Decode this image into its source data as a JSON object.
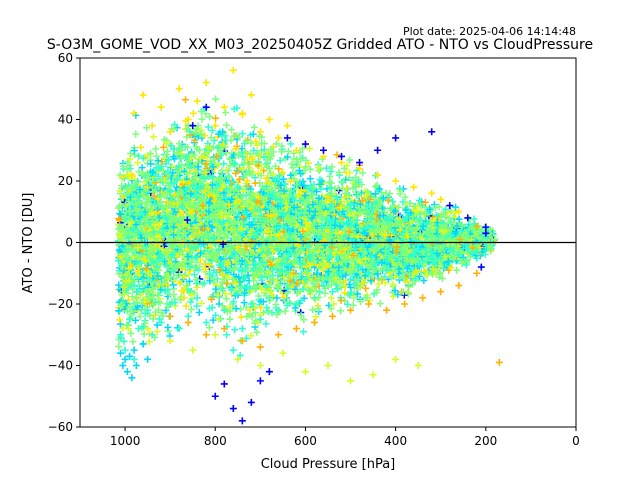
{
  "plot_date": "Plot date: 2025-04-06 14:14:48",
  "chart_data": {
    "type": "scatter",
    "title": "S-O3M_GOME_VOD_XX_M03_20250405Z Gridded ATO - NTO vs CloudPressure",
    "xlabel": "Cloud Pressure [hPa]",
    "ylabel": "ATO - NTO [DU]",
    "xlim": [
      1100,
      0
    ],
    "ylim": [
      -60,
      60
    ],
    "x_ticks": [
      1000,
      800,
      600,
      400,
      200,
      0
    ],
    "y_ticks": [
      -60,
      -40,
      -20,
      0,
      20,
      40,
      60
    ],
    "x_tick_labels": [
      "1000",
      "800",
      "600",
      "400",
      "200",
      "0"
    ],
    "y_tick_labels": [
      "−60",
      "−40",
      "−20",
      "0",
      "20",
      "40",
      "60"
    ],
    "reference_line_y": 0,
    "marker": "+",
    "grid": false,
    "colormap_colors": [
      "#0000ff",
      "#00d9ff",
      "#2dffd0",
      "#7dff7b",
      "#d4ff23",
      "#ffe600",
      "#ffb000"
    ],
    "series": [
      {
        "color": "#7dff7b",
        "x": [
          1010,
          1005,
          1000,
          995,
          990,
          985,
          980,
          975,
          970,
          960,
          950,
          940,
          930,
          920,
          910,
          900,
          880,
          860,
          840,
          820,
          800,
          780,
          760,
          740,
          720,
          700,
          680,
          660,
          640,
          620,
          600,
          580,
          560,
          540,
          520,
          500,
          480,
          460,
          440,
          420,
          400,
          380,
          360,
          340,
          320,
          300,
          280,
          260,
          240,
          220,
          200,
          190,
          180
        ],
        "y": [
          5,
          -8,
          12,
          -14,
          3,
          18,
          -20,
          9,
          -5,
          22,
          -16,
          7,
          -2,
          15,
          -11,
          4,
          -7,
          13,
          -18,
          2,
          10,
          -12,
          6,
          -3,
          16,
          -9,
          1,
          -14,
          8,
          -4,
          11,
          -6,
          3,
          -10,
          7,
          -2,
          5,
          -8,
          4,
          -1,
          6,
          -5,
          2,
          -3,
          4,
          -2,
          1,
          -3,
          2,
          -1,
          0,
          -2,
          1
        ]
      },
      {
        "color": "#2dffd0",
        "x": [
          1010,
          1000,
          990,
          980,
          970,
          960,
          950,
          940,
          920,
          900,
          880,
          860,
          840,
          820,
          800,
          780,
          760,
          740,
          720,
          700,
          680,
          660,
          640,
          620,
          600,
          580,
          560,
          540,
          520,
          500,
          480,
          460,
          440,
          420,
          400,
          380,
          360,
          340,
          320,
          300,
          280,
          260,
          240,
          220,
          200
        ],
        "y": [
          -30,
          -35,
          -25,
          -38,
          -28,
          -33,
          -22,
          -30,
          -26,
          -20,
          -28,
          -24,
          -18,
          -26,
          -30,
          -22,
          -35,
          -28,
          -20,
          -25,
          -18,
          -22,
          -15,
          -20,
          -12,
          -18,
          -14,
          -16,
          -10,
          -12,
          -8,
          -10,
          -6,
          -9,
          -5,
          -7,
          -4,
          -6,
          -3,
          -5,
          -2,
          -4,
          -2,
          -3,
          -1
        ]
      },
      {
        "color": "#00d9ff",
        "x": [
          1010,
          1005,
          1000,
          995,
          990,
          985,
          980,
          975,
          960,
          950
        ],
        "y": [
          -36,
          -40,
          -38,
          -42,
          -37,
          -44,
          -35,
          -40,
          -33,
          -38
        ]
      },
      {
        "color": "#ffe600",
        "x": [
          980,
          960,
          940,
          920,
          900,
          880,
          860,
          840,
          820,
          800,
          780,
          760,
          740,
          720,
          700,
          680,
          660,
          640,
          620,
          600,
          560,
          520,
          480,
          440,
          400,
          360,
          320,
          300,
          280,
          260
        ],
        "y": [
          42,
          48,
          38,
          44,
          36,
          50,
          40,
          46,
          52,
          38,
          44,
          56,
          42,
          48,
          36,
          40,
          34,
          38,
          30,
          32,
          28,
          26,
          24,
          22,
          20,
          18,
          16,
          14,
          12,
          10
        ]
      },
      {
        "color": "#ffb000",
        "x": [
          900,
          860,
          820,
          780,
          740,
          700,
          660,
          620,
          580,
          540,
          500,
          460,
          420,
          380,
          340,
          300,
          260,
          220,
          170
        ],
        "y": [
          -24,
          -26,
          -30,
          -28,
          -32,
          -34,
          -30,
          -28,
          -26,
          -24,
          -22,
          -20,
          -22,
          -20,
          -18,
          -16,
          -14,
          -10,
          -39
        ]
      },
      {
        "color": "#d4ff23",
        "x": [
          950,
          900,
          850,
          800,
          750,
          700,
          650,
          600,
          550,
          500,
          450,
          400,
          350
        ],
        "y": [
          -28,
          -32,
          -35,
          -30,
          -38,
          -40,
          -36,
          -42,
          -40,
          -45,
          -43,
          -38,
          -40
        ]
      },
      {
        "color": "#0000ff",
        "x": [
          850,
          820,
          800,
          780,
          760,
          740,
          720,
          700,
          680,
          640,
          600,
          560,
          520,
          480,
          440,
          400,
          320,
          280,
          240,
          200,
          200,
          210
        ],
        "y": [
          38,
          44,
          -50,
          -46,
          -54,
          -58,
          -52,
          -45,
          -42,
          34,
          32,
          30,
          28,
          26,
          30,
          34,
          36,
          12,
          8,
          3,
          5,
          -8
        ]
      }
    ]
  }
}
